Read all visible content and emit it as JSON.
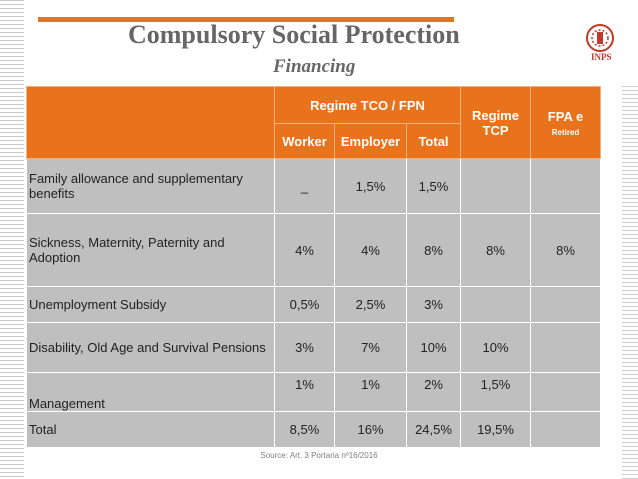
{
  "slide": {
    "title": "Compulsory Social Protection",
    "subtitle": "Financing",
    "logo_text": "INPS",
    "source": "Source: Art. 3 Portaria nº16/2016"
  },
  "table": {
    "header": {
      "group": "Regime TCO / FPN",
      "regime_tcp": "Regime TCP",
      "fpa_title": "FPA e",
      "fpa_sub": "Retired",
      "worker": "Worker",
      "employer": "Employer",
      "total": "Total"
    },
    "rows": [
      {
        "label": "Family allowance and supplementary benefits",
        "worker": "_",
        "employer": "1,5%",
        "total": "1,5%",
        "tcp": "",
        "fpa": ""
      },
      {
        "label": "Sickness, Maternity, Paternity and Adoption",
        "worker": "4%",
        "employer": "4%",
        "total": "8%",
        "tcp": "8%",
        "fpa": "8%"
      },
      {
        "label": "Unemployment Subsidy",
        "worker": "0,5%",
        "employer": "2,5%",
        "total": "3%",
        "tcp": "",
        "fpa": ""
      },
      {
        "label": "Disability, Old Age and Survival Pensions",
        "worker": "3%",
        "employer": "7%",
        "total": "10%",
        "tcp": "10%",
        "fpa": ""
      },
      {
        "label": "Management",
        "worker": "1%",
        "employer": "1%",
        "total": "2%",
        "tcp": "1,5%",
        "fpa": ""
      },
      {
        "label": "Total",
        "worker": "8,5%",
        "employer": "16%",
        "total": "24,5%",
        "tcp": "19,5%",
        "fpa": ""
      }
    ]
  }
}
